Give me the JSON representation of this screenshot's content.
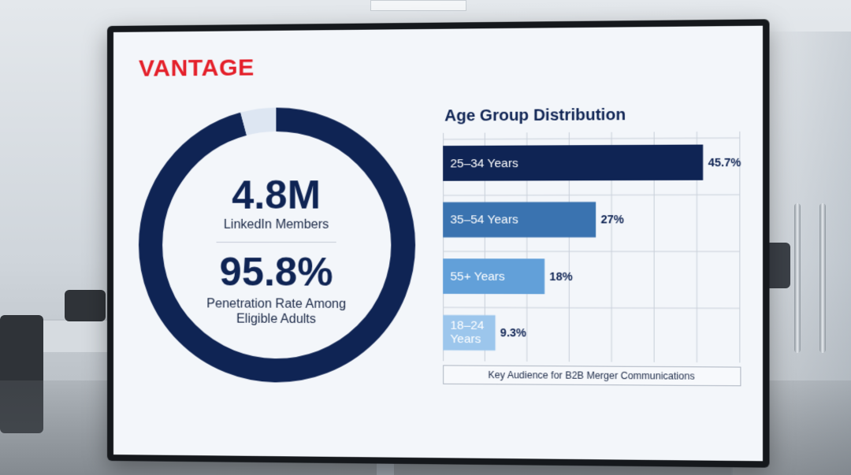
{
  "brand": {
    "name": "VANTAGE",
    "color": "#e4202a"
  },
  "kpis": {
    "members_value": "4.8M",
    "members_label": "LinkedIn Members",
    "rate_value": "95.8%",
    "rate_label": "Penetration Rate Among Eligible Adults"
  },
  "chart_data": [
    {
      "type": "pie",
      "subtype": "donut",
      "values": [
        95.8,
        4.2
      ],
      "colors": [
        "#0f2454",
        "#dde6f2"
      ]
    },
    {
      "type": "bar",
      "orientation": "horizontal",
      "title": "Age Group Distribution",
      "categories": [
        "25–34 Years",
        "35–54 Years",
        "55+ Years",
        "18–24 Years"
      ],
      "values": [
        45.7,
        27,
        18,
        9.3
      ],
      "value_labels": [
        "45.7%",
        "27%",
        "18%",
        "9.3%"
      ],
      "colors": [
        "#0f2454",
        "#3a73b0",
        "#62a0d9",
        "#9cc6ec"
      ],
      "xlim": [
        0,
        52
      ],
      "grid": true,
      "caption": "Key Audience for B2B Merger Communications"
    }
  ]
}
